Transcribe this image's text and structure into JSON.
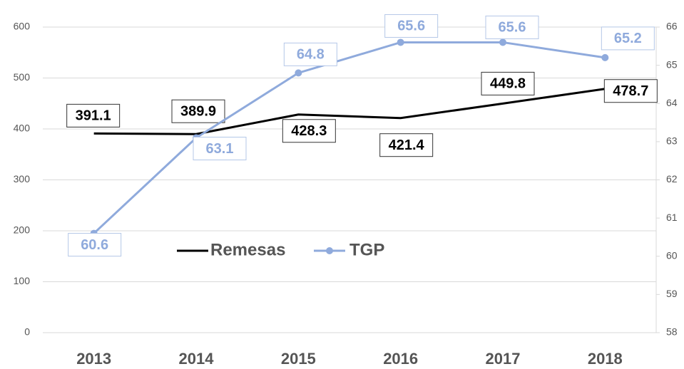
{
  "chart_data": {
    "type": "line",
    "categories": [
      "2013",
      "2014",
      "2015",
      "2016",
      "2017",
      "2018"
    ],
    "series": [
      {
        "name": "Remesas",
        "color": "#000000",
        "values": [
          391.1,
          389.9,
          428.3,
          421.4,
          449.8,
          478.7
        ]
      },
      {
        "name": "TGP",
        "color": "#8faadc",
        "axis": "y2",
        "values": [
          60.6,
          63.1,
          64.8,
          65.6,
          65.6,
          65.2
        ]
      }
    ],
    "ylim": [
      0,
      600
    ],
    "yticks": [
      0,
      100,
      200,
      300,
      400,
      500,
      600
    ],
    "y2lim": [
      58,
      66
    ],
    "y2ticks": [
      58,
      59,
      60,
      61,
      62,
      63,
      64,
      65,
      66
    ],
    "grid": true,
    "legend": "center"
  }
}
